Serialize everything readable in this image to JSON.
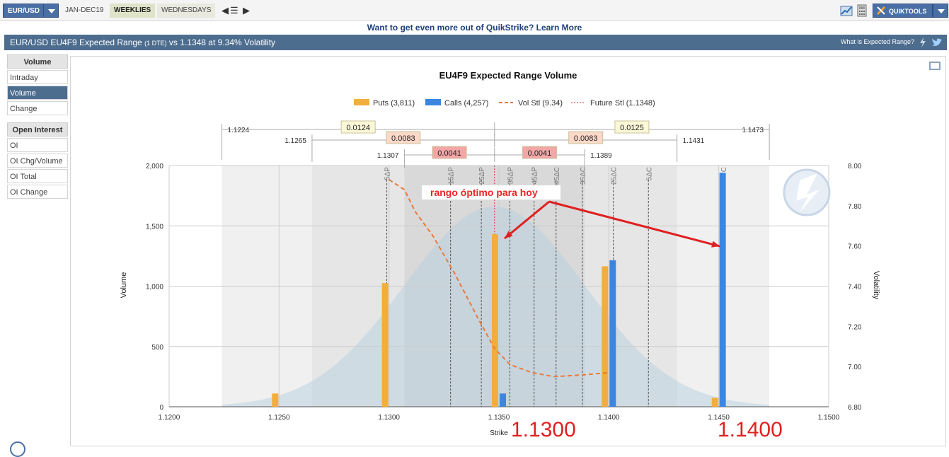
{
  "topbar": {
    "symbol": "EUR/USD",
    "tabs": [
      "JAN-DEC19",
      "WEEKLIES",
      "WEDNESDAYS"
    ],
    "quiktools_label": "QUIKTOOLS"
  },
  "promo": "Want to get even more out of QuikStrike? Learn More",
  "header": {
    "title_main": "EUR/USD EU4F9 Expected Range ",
    "title_dte": "(1 DTE)",
    "title_tail": " vs 1.1348 at 9.34% Volatility",
    "help": "What is Expected Range?"
  },
  "sidebar": {
    "volume_head": "Volume",
    "volume_items": [
      "Intraday",
      "Volume",
      "Change"
    ],
    "oi_head": "Open Interest",
    "oi_items": [
      "OI",
      "OI Chg/Volume",
      "OI Total",
      "OI Change"
    ]
  },
  "annotation": "rango óptimo para hoy",
  "big_labels": [
    "1.1300",
    "1.1400"
  ],
  "colors": {
    "puts": "#f2ae3c",
    "calls": "#3c86e0",
    "vol": "#e87a3c",
    "future": "#d03030",
    "accent": "#4d6d8f"
  },
  "chart_data": {
    "type": "bar",
    "title": "EU4F9 Expected Range Volume",
    "xlabel": "Strike",
    "ylabel": "Volume",
    "y2label": "Volatility",
    "xlim": [
      1.12,
      1.15
    ],
    "ylim": [
      0,
      2000
    ],
    "y2lim": [
      6.8,
      8.0
    ],
    "x_ticks": [
      "1.1200",
      "1.1250",
      "1.1300",
      "1.1350",
      "1.1400",
      "1.1450",
      "1.1500"
    ],
    "y_ticks": [
      "0",
      "500",
      "1,000",
      "1,500",
      "2,000"
    ],
    "y2_ticks": [
      "6.80",
      "7.00",
      "7.20",
      "7.40",
      "7.60",
      "7.80",
      "8.00"
    ],
    "legend": [
      "Puts (3,811)",
      "Calls (4,257)",
      "Vol Stl (9.34)",
      "Future Stl (1.1348)"
    ],
    "strikes": [
      1.125,
      1.13,
      1.135,
      1.14,
      1.145
    ],
    "series": [
      {
        "name": "Puts",
        "values": [
          110,
          1025,
          1430,
          1165,
          75
        ]
      },
      {
        "name": "Calls",
        "values": [
          0,
          0,
          110,
          1215,
          1940
        ]
      }
    ],
    "vol_curve": {
      "x": [
        1.13,
        1.1307,
        1.1312,
        1.132,
        1.133,
        1.134,
        1.1348,
        1.1355,
        1.1365,
        1.1375,
        1.139,
        1.14
      ],
      "y": [
        7.93,
        7.88,
        7.77,
        7.65,
        7.46,
        7.25,
        7.09,
        7.01,
        6.97,
        6.95,
        6.96,
        6.97
      ]
    },
    "future_settle": 1.1348,
    "ranges": [
      {
        "low": "1.1224",
        "high": "1.1473",
        "width_left": "0.0124",
        "width_right": "0.0125",
        "lo": 1.1224,
        "hi": 1.1473,
        "mid": 1.1348
      },
      {
        "low": "1.1265",
        "high": "1.1431",
        "width_left": "0.0083",
        "width_right": "0.0083",
        "lo": 1.1265,
        "hi": 1.1431,
        "mid": 1.1348
      },
      {
        "low": "1.1307",
        "high": "1.1389",
        "width_left": "0.0041",
        "width_right": "0.0041",
        "lo": 1.1307,
        "hi": 1.1389,
        "mid": 1.1348
      }
    ],
    "delta_lines": [
      {
        "x": 1.1299,
        "label": "5ΔP"
      },
      {
        "x": 1.1328,
        "label": "15ΔP"
      },
      {
        "x": 1.1342,
        "label": "25ΔP"
      },
      {
        "x": 1.1355,
        "label": "35ΔP"
      },
      {
        "x": 1.1366,
        "label": "45ΔP"
      },
      {
        "x": 1.1376,
        "label": "45ΔC"
      },
      {
        "x": 1.1388,
        "label": "35ΔC"
      },
      {
        "x": 1.1402,
        "label": "25ΔC"
      },
      {
        "x": 1.1418,
        "label": "5ΔC"
      },
      {
        "x": 1.1452,
        "label": "C"
      }
    ]
  }
}
